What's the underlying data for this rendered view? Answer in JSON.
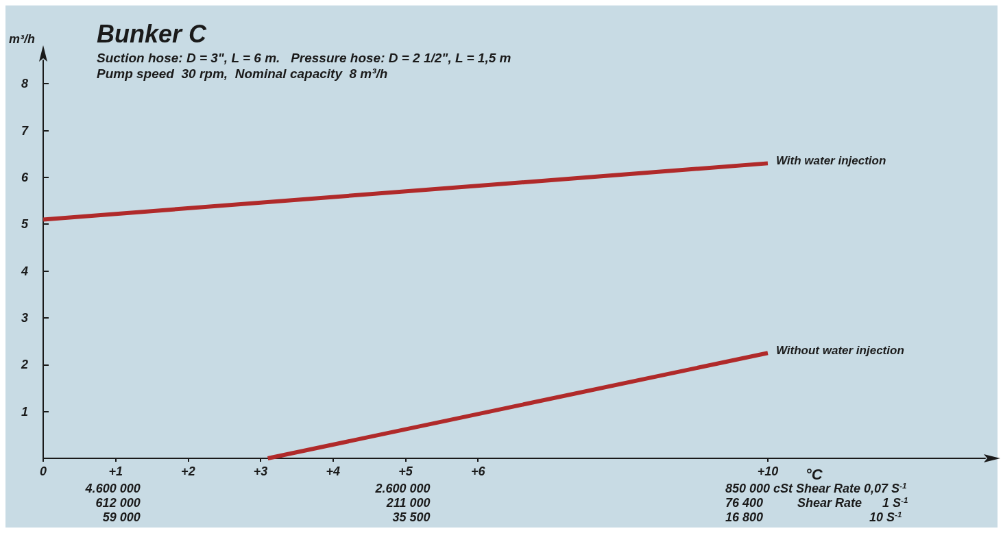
{
  "chart_data": {
    "type": "line",
    "title": "Bunker C",
    "subtitle": "Suction hose: D = 3\", L = 6 m.   Pressure hose: D = 2 1/2\", L = 1,5 m\nPump speed  30 rpm,  Nominal capacity  8 m³/h",
    "ylabel": "m³/h",
    "xlabel": "°C",
    "series": [
      {
        "name": "With water injection",
        "color": "#b02a2a",
        "x": [
          0,
          10
        ],
        "values": [
          5.1,
          6.3
        ]
      },
      {
        "name": "Without water injection",
        "color": "#b02a2a",
        "x": [
          3.1,
          10
        ],
        "values": [
          0,
          2.25
        ]
      }
    ],
    "xlim": [
      0,
      13
    ],
    "xticks": [
      0,
      {
        "value": 1,
        "label": "+1"
      },
      {
        "value": 2,
        "label": "+2"
      },
      {
        "value": 3,
        "label": "+3"
      },
      {
        "value": 4,
        "label": "+4"
      },
      {
        "value": 5,
        "label": "+5"
      },
      {
        "value": 6,
        "label": "+6"
      },
      {
        "value": 10,
        "label": "+10"
      }
    ],
    "ylim": [
      0,
      8.5
    ],
    "yticks": [
      1,
      2,
      3,
      4,
      5,
      6,
      7,
      8
    ],
    "annotations": [
      "4.600 000\n612 000\n59 000",
      "2.600 000\n211 000\n35 500",
      "850 000 cSt Shear Rate 0,07 S$^{-1}$\n76 400          Shear Rate      1 S$^{-1}$\n16 800                               10 S$^{-1}$"
    ],
    "grid": false,
    "legend": false,
    "marker": "none",
    "line_style": "solid"
  }
}
